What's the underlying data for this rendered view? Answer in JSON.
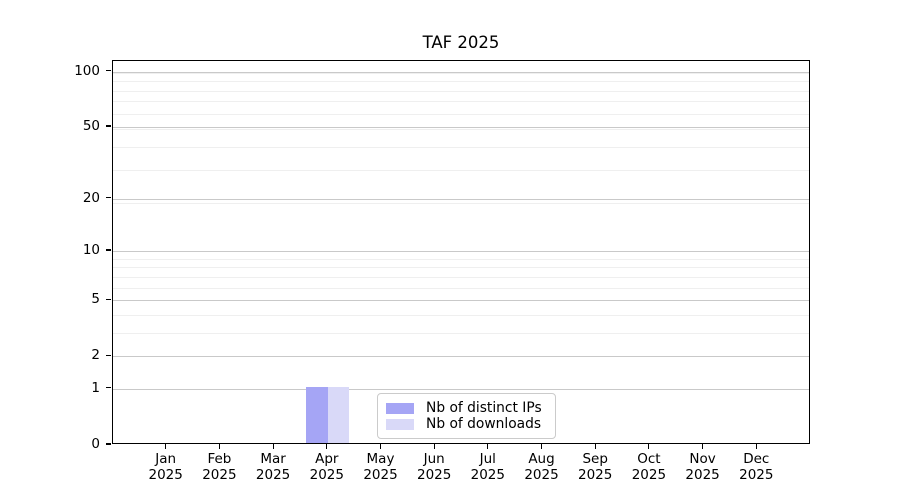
{
  "chart_data": {
    "type": "bar",
    "title": "TAF 2025",
    "x_year": "2025",
    "categories": [
      "Jan",
      "Feb",
      "Mar",
      "Apr",
      "May",
      "Jun",
      "Jul",
      "Aug",
      "Sep",
      "Oct",
      "Nov",
      "Dec"
    ],
    "series": [
      {
        "name": "Nb of distinct IPs",
        "color": "#a5a5f5",
        "values": [
          0,
          0,
          0,
          1,
          0,
          0,
          0,
          0,
          0,
          0,
          0,
          0
        ]
      },
      {
        "name": "Nb of downloads",
        "color": "#d9d9f8",
        "values": [
          0,
          0,
          0,
          1,
          0,
          0,
          0,
          0,
          0,
          0,
          0,
          0
        ]
      }
    ],
    "y_scale": "log1p",
    "ylabel": "",
    "xlabel": "",
    "y_ticks": [
      0,
      1,
      2,
      5,
      10,
      20,
      50,
      100
    ],
    "y_minor_gridlines": [
      3,
      4,
      6,
      7,
      8,
      9,
      19,
      29,
      39,
      49,
      59,
      69,
      79,
      89,
      99
    ],
    "ylim": [
      0,
      114.3
    ],
    "legend": {
      "position": "lower-center"
    },
    "grid": {
      "major_color": "#c9c9c9",
      "minor_color": "#efefef"
    }
  }
}
